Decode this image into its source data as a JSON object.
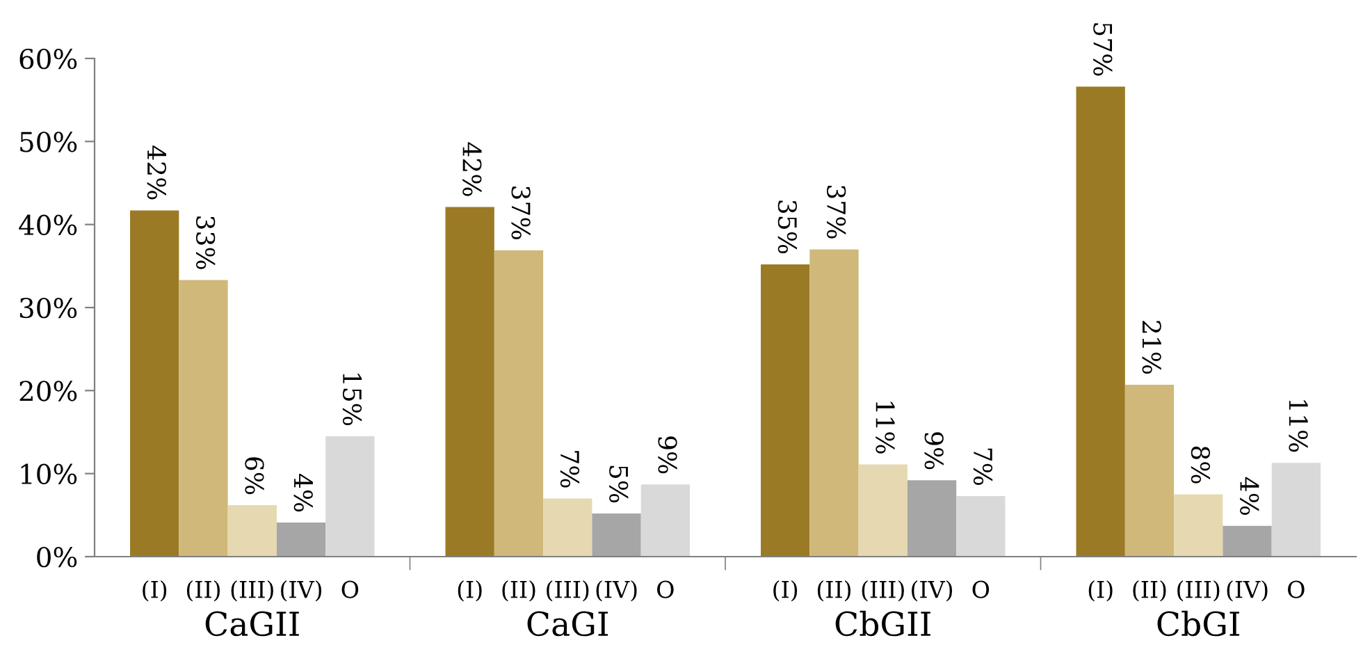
{
  "chart_data": {
    "type": "bar",
    "categories": [
      "CaGII",
      "CaGI",
      "CbGII",
      "CbGI"
    ],
    "series": [
      {
        "name": "(I)",
        "color": "#9b7a25",
        "values": [
          41.7,
          42.1,
          35.2,
          56.6
        ],
        "value_labels": [
          "42%",
          "42%",
          "35%",
          "57%"
        ]
      },
      {
        "name": "(II)",
        "color": "#cfb87a",
        "values": [
          33.3,
          36.9,
          37.0,
          20.7
        ],
        "value_labels": [
          "33%",
          "37%",
          "37%",
          "21%"
        ]
      },
      {
        "name": "(III)",
        "color": "#e6d8b0",
        "values": [
          6.2,
          7.0,
          11.1,
          7.5
        ],
        "value_labels": [
          "6%",
          "7%",
          "11%",
          "8%"
        ]
      },
      {
        "name": "(IV)",
        "color": "#a6a6a6",
        "values": [
          4.1,
          5.2,
          9.2,
          3.7
        ],
        "value_labels": [
          "4%",
          "5%",
          "9%",
          "4%"
        ]
      },
      {
        "name": "O",
        "color": "#d9d9d9",
        "values": [
          14.5,
          8.7,
          7.3,
          11.3
        ],
        "value_labels": [
          "15%",
          "9%",
          "7%",
          "11%"
        ]
      }
    ],
    "ylim": [
      0,
      60
    ],
    "yticks": [
      {
        "value": 0,
        "label": "0%"
      },
      {
        "value": 10,
        "label": "10%"
      },
      {
        "value": 20,
        "label": "20%"
      },
      {
        "value": 30,
        "label": "30%"
      },
      {
        "value": 40,
        "label": "40%"
      },
      {
        "value": 50,
        "label": "50%"
      },
      {
        "value": 60,
        "label": "60%"
      }
    ],
    "grid": false,
    "legend": false
  }
}
